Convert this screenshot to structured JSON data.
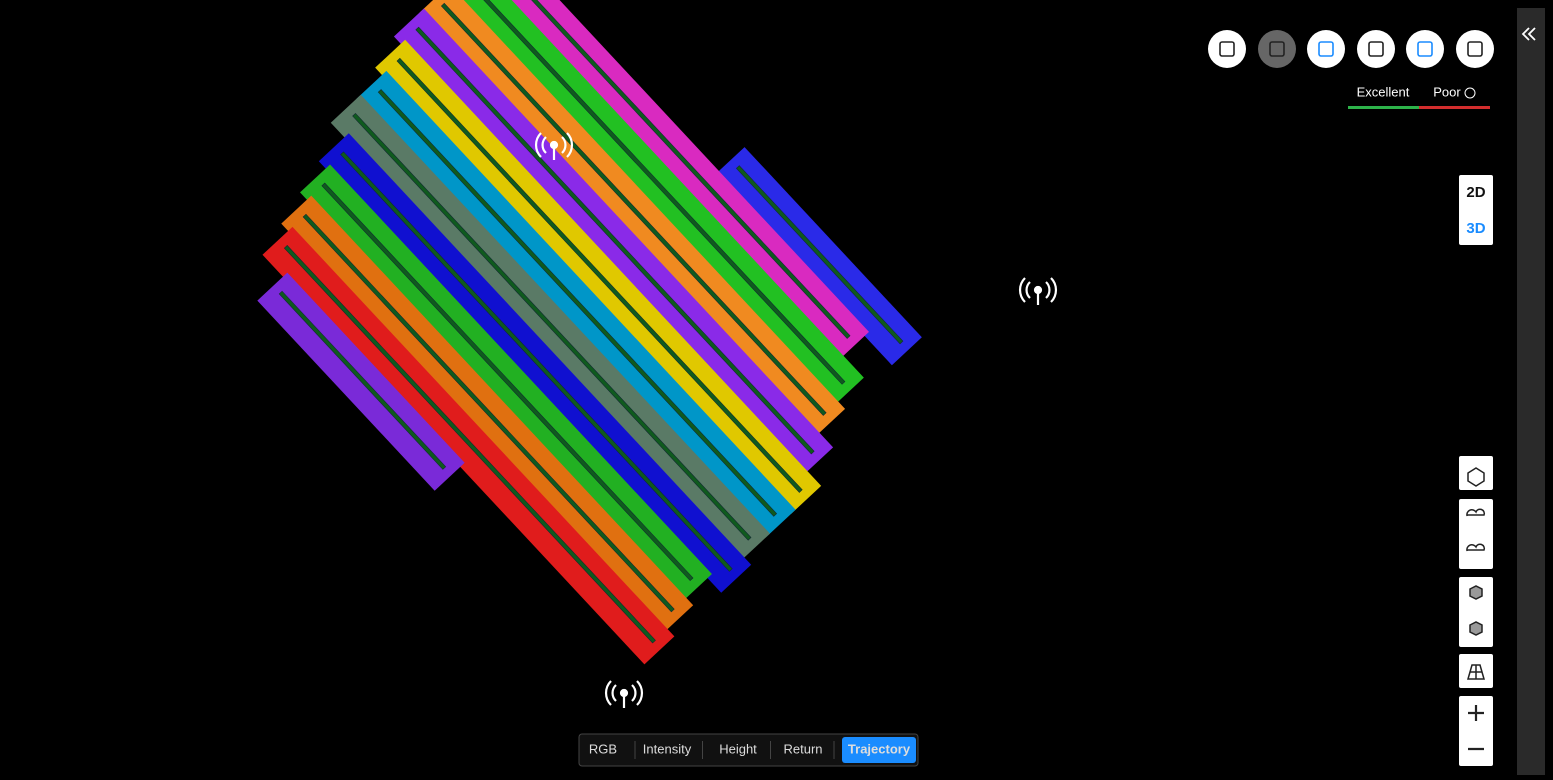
{
  "legend": {
    "good": "Excellent",
    "bad": "Poor"
  },
  "view_modes": [
    "2D",
    "3D"
  ],
  "tabs": [
    "RGB",
    "Intensity",
    "Height",
    "Return",
    "Trajectory"
  ]
}
